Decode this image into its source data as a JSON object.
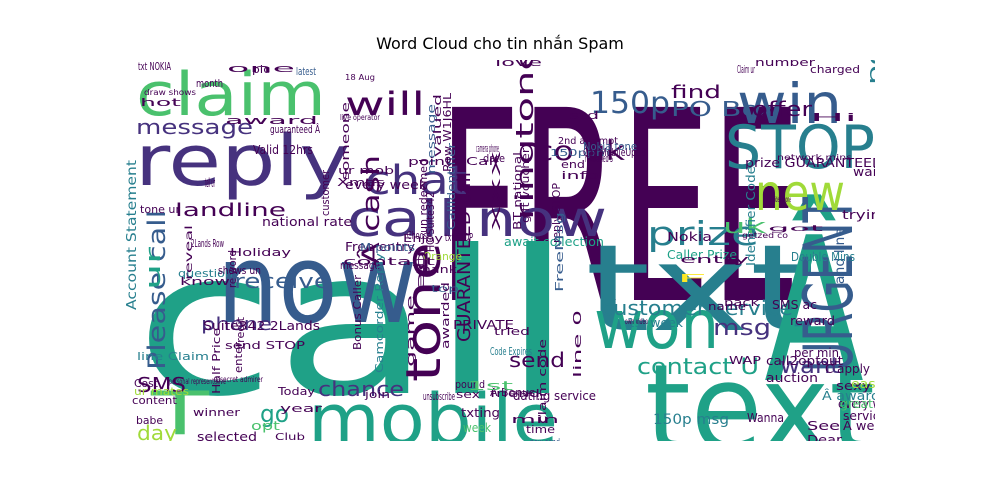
{
  "chart_data": {
    "type": "word_cloud",
    "title": "Word Cloud cho tin nhắn Spam",
    "palette": [
      "#440154",
      "#46327e",
      "#365c8d",
      "#277f8e",
      "#1fa187",
      "#4ac16d",
      "#a0da39",
      "#fde725"
    ],
    "words": [
      {
        "text": "FREE",
        "color": "#440154"
      },
      {
        "text": "call",
        "color": "#1fa187"
      },
      {
        "text": "txt",
        "color": "#277f8e"
      },
      {
        "text": "Â",
        "color": "#1fa187"
      },
      {
        "text": "now",
        "color": "#365c8d"
      },
      {
        "text": "text",
        "color": "#1fa187"
      },
      {
        "text": "mobile",
        "color": "#1fa187"
      },
      {
        "text": "claim",
        "color": "#4ac16d"
      },
      {
        "text": "reply",
        "color": "#46327e"
      },
      {
        "text": "STOP",
        "color": "#277f8e"
      },
      {
        "text": "won",
        "color": "#1fa187"
      },
      {
        "text": "URGENT",
        "color": "#365c8d"
      },
      {
        "text": "win",
        "color": "#365c8d"
      },
      {
        "text": "new",
        "color": "#a0da39"
      },
      {
        "text": "call now",
        "color": "#46327e"
      },
      {
        "text": "tone",
        "color": "#440154"
      },
      {
        "text": "T",
        "color": "#4ac16d"
      },
      {
        "text": "chat",
        "color": "#46327e"
      },
      {
        "text": "will",
        "color": "#440154"
      },
      {
        "text": "150p",
        "color": "#365c8d"
      },
      {
        "text": "prize",
        "color": "#277f8e"
      },
      {
        "text": "message",
        "color": "#46327e"
      },
      {
        "text": "co uk",
        "color": "#440154"
      },
      {
        "text": "ringtone",
        "color": "#440154"
      },
      {
        "text": "Please call",
        "color": "#365c8d"
      },
      {
        "text": "customer service",
        "color": "#277f8e"
      },
      {
        "text": "Â cash",
        "color": "#440154"
      },
      {
        "text": "contact U",
        "color": "#1fa187"
      },
      {
        "text": "find",
        "color": "#440154"
      },
      {
        "text": "PO Box",
        "color": "#365c8d"
      },
      {
        "text": "offer",
        "color": "#440154"
      },
      {
        "text": "receive",
        "color": "#365c8d"
      },
      {
        "text": "landline",
        "color": "#440154"
      },
      {
        "text": "phone",
        "color": "#46327e"
      },
      {
        "text": "msg",
        "color": "#46327e"
      },
      {
        "text": "want",
        "color": "#46327e"
      },
      {
        "text": "chance",
        "color": "#46327e"
      },
      {
        "text": "send",
        "color": "#440154"
      },
      {
        "text": "GUARANTEED call",
        "color": "#440154"
      },
      {
        "text": "uk",
        "color": "#4ac16d"
      },
      {
        "text": "go",
        "color": "#1fa187"
      },
      {
        "text": "day",
        "color": "#a0da39"
      },
      {
        "text": "SMS",
        "color": "#440154"
      },
      {
        "text": "ur",
        "color": "#1fa187"
      },
      {
        "text": "poly",
        "color": "#277f8e"
      },
      {
        "text": "collect",
        "color": "#46327e"
      },
      {
        "text": "land line",
        "color": "#365c8d"
      },
      {
        "text": "2nd attempt",
        "color": "#440154"
      },
      {
        "text": "150ppm",
        "color": "#365c8d"
      },
      {
        "text": "Valid 12hrs",
        "color": "#440154"
      },
      {
        "text": "every week",
        "color": "#440154"
      },
      {
        "text": "national rate",
        "color": "#440154"
      },
      {
        "text": "Free entry",
        "color": "#440154"
      },
      {
        "text": "await collection",
        "color": "#1fa187"
      },
      {
        "text": "Nokia",
        "color": "#440154"
      },
      {
        "text": "Caller Prize",
        "color": "#1fa187"
      },
      {
        "text": "Identifier Code",
        "color": "#277f8e"
      },
      {
        "text": "Double Mins",
        "color": "#277f8e"
      },
      {
        "text": "prize GUARANTEED",
        "color": "#440154"
      },
      {
        "text": "waiting",
        "color": "#440154"
      },
      {
        "text": "trying",
        "color": "#440154"
      },
      {
        "text": "reward",
        "color": "#440154"
      },
      {
        "text": "per min",
        "color": "#440154"
      },
      {
        "text": "C apply",
        "color": "#440154"
      },
      {
        "text": "Â award",
        "color": "#277f8e"
      },
      {
        "text": "every wk",
        "color": "#440154"
      },
      {
        "text": "service",
        "color": "#440154"
      },
      {
        "text": "Â weekly",
        "color": "#440154"
      },
      {
        "text": "dating service",
        "color": "#440154"
      },
      {
        "text": "150p msg",
        "color": "#277f8e"
      },
      {
        "text": "sexy",
        "color": "#440154"
      },
      {
        "text": "easy",
        "color": "#a0da39"
      },
      {
        "text": "See",
        "color": "#440154"
      },
      {
        "text": "Dear",
        "color": "#440154"
      },
      {
        "text": "great",
        "color": "#4ac16d"
      },
      {
        "text": "Wanna",
        "color": "#440154"
      },
      {
        "text": "auction",
        "color": "#440154"
      },
      {
        "text": "call2optout",
        "color": "#440154"
      },
      {
        "text": "SMS ac",
        "color": "#440154"
      },
      {
        "text": "1st week",
        "color": "#277f8e"
      },
      {
        "text": "Account Statement",
        "color": "#277f8e"
      },
      {
        "text": "Suite342 2Lands",
        "color": "#440154"
      },
      {
        "text": "send STOP",
        "color": "#440154"
      },
      {
        "text": "line Claim",
        "color": "#277f8e"
      },
      {
        "text": "Half Price",
        "color": "#440154"
      },
      {
        "text": "winner",
        "color": "#440154"
      },
      {
        "text": "selected",
        "color": "#440154"
      },
      {
        "text": "content",
        "color": "#440154"
      },
      {
        "text": "ur mates",
        "color": "#a0da39"
      },
      {
        "text": "Cost",
        "color": "#440154"
      },
      {
        "text": "babe",
        "color": "#440154"
      },
      {
        "text": "Club",
        "color": "#440154"
      },
      {
        "text": "opt",
        "color": "#4ac16d"
      },
      {
        "text": "year",
        "color": "#440154"
      },
      {
        "text": "Today",
        "color": "#440154"
      },
      {
        "text": "enter",
        "color": "#440154"
      },
      {
        "text": "credit",
        "color": "#440154"
      },
      {
        "text": "know",
        "color": "#440154"
      },
      {
        "text": "question",
        "color": "#277f8e"
      },
      {
        "text": "reveal",
        "color": "#440154"
      },
      {
        "text": "M points",
        "color": "#365c8d"
      },
      {
        "text": "message",
        "color": "#440154"
      },
      {
        "text": "Thank",
        "color": "#440154"
      },
      {
        "text": "Orange",
        "color": "#a0da39"
      },
      {
        "text": "Enjoy",
        "color": "#440154"
      },
      {
        "text": "Choose",
        "color": "#440154"
      },
      {
        "text": "top",
        "color": "#365c8d"
      },
      {
        "text": "eg",
        "color": "#440154"
      },
      {
        "text": "PRIVATE",
        "color": "#440154"
      },
      {
        "text": "txt STOP",
        "color": "#440154"
      },
      {
        "text": "XXX",
        "color": "#440154"
      },
      {
        "text": "BT national",
        "color": "#440154"
      },
      {
        "text": "gift voucher",
        "color": "#440154"
      },
      {
        "text": "reply STOP",
        "color": "#440154"
      },
      {
        "text": "FreeMsg",
        "color": "#365c8d"
      },
      {
        "text": "CallIdentifier",
        "color": "#365c8d"
      },
      {
        "text": "un redeemed",
        "color": "#440154"
      },
      {
        "text": "HG Suite342",
        "color": "#440154"
      },
      {
        "text": "awarded",
        "color": "#440154"
      },
      {
        "text": "Code Expires",
        "color": "#277f8e"
      },
      {
        "text": "tried",
        "color": "#440154"
      },
      {
        "text": "pound",
        "color": "#440154"
      },
      {
        "text": "game",
        "color": "#440154"
      },
      {
        "text": "unsubscribe",
        "color": "#440154"
      },
      {
        "text": "friend",
        "color": "#440154"
      },
      {
        "text": "Â Bonus",
        "color": "#440154"
      },
      {
        "text": "join",
        "color": "#440154"
      },
      {
        "text": "sex",
        "color": "#440154"
      },
      {
        "text": "1st",
        "color": "#4ac16d"
      },
      {
        "text": "txting",
        "color": "#440154"
      },
      {
        "text": "week",
        "color": "#4ac16d"
      },
      {
        "text": "min",
        "color": "#440154"
      },
      {
        "text": "now send",
        "color": "#365c8d"
      },
      {
        "text": "claim code",
        "color": "#440154"
      },
      {
        "text": "line 0",
        "color": "#440154"
      },
      {
        "text": "time",
        "color": "#440154"
      },
      {
        "text": "name",
        "color": "#440154"
      },
      {
        "text": "back",
        "color": "#440154"
      },
      {
        "text": "WAP",
        "color": "#440154"
      },
      {
        "text": "Camcorder Reply",
        "color": "#277f8e"
      },
      {
        "text": "Bonus Caller",
        "color": "#440154"
      },
      {
        "text": "contact",
        "color": "#440154"
      },
      {
        "text": "message",
        "color": "#365c8d"
      },
      {
        "text": "Row W1J6HL",
        "color": "#440154"
      },
      {
        "text": "points Call",
        "color": "#440154"
      },
      {
        "text": "Call MobileUpd8",
        "color": "#440154"
      },
      {
        "text": "Nokia tone",
        "color": "#365c8d"
      },
      {
        "text": "redeemed S",
        "color": "#440154"
      },
      {
        "text": "end",
        "color": "#440154"
      },
      {
        "text": "info",
        "color": "#440154"
      },
      {
        "text": "shows un",
        "color": "#440154"
      },
      {
        "text": "Holiday",
        "color": "#440154"
      },
      {
        "text": "2Lands Row",
        "color": "#440154"
      },
      {
        "text": "Xmas",
        "color": "#440154"
      },
      {
        "text": "tone ur",
        "color": "#440154"
      },
      {
        "text": "ur mob",
        "color": "#440154"
      },
      {
        "text": "customer",
        "color": "#440154"
      },
      {
        "text": "someone",
        "color": "#440154"
      },
      {
        "text": "valued",
        "color": "#440154"
      },
      {
        "text": "camera phone",
        "color": "#440154"
      },
      {
        "text": "date",
        "color": "#440154"
      },
      {
        "text": "std",
        "color": "#440154"
      },
      {
        "text": "love",
        "color": "#440154"
      },
      {
        "text": "number",
        "color": "#440154"
      },
      {
        "text": "charged",
        "color": "#440154"
      },
      {
        "text": "Claim ur",
        "color": "#440154"
      },
      {
        "text": "Hi",
        "color": "#440154"
      },
      {
        "text": "ur cash",
        "color": "#440154"
      },
      {
        "text": "latest",
        "color": "#365c8d"
      },
      {
        "text": "pic",
        "color": "#440154"
      },
      {
        "text": "one",
        "color": "#440154"
      },
      {
        "text": "txt NOKIA",
        "color": "#440154"
      },
      {
        "text": "month",
        "color": "#440154"
      },
      {
        "text": "hot",
        "color": "#440154"
      },
      {
        "text": "award",
        "color": "#440154"
      },
      {
        "text": "guaranteed Â",
        "color": "#440154"
      },
      {
        "text": "re word",
        "color": "#440154"
      },
      {
        "text": "tell ur",
        "color": "#440154"
      },
      {
        "text": "F",
        "color": "#fde725"
      },
      {
        "text": "entry",
        "color": "#440154"
      },
      {
        "text": "draw shows",
        "color": "#440154"
      },
      {
        "text": "live operator",
        "color": "#440154"
      },
      {
        "text": "network mins",
        "color": "#440154"
      },
      {
        "text": "personal representative",
        "color": "#440154"
      },
      {
        "text": "secret admirer",
        "color": "#440154"
      },
      {
        "text": "video phone",
        "color": "#440154"
      },
      {
        "text": "got",
        "color": "#440154"
      },
      {
        "text": "getzed co",
        "color": "#440154"
      },
      {
        "text": "own video",
        "color": "#440154"
      },
      {
        "text": "18 Aug",
        "color": "#440154"
      },
      {
        "text": "I Close",
        "color": "#440154"
      }
    ]
  }
}
